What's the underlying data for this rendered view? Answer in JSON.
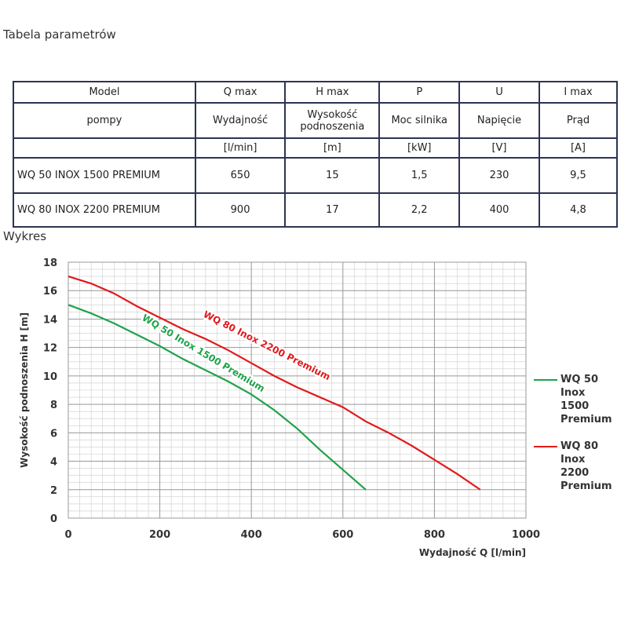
{
  "header": {
    "title": "Tabela parametrów"
  },
  "table": {
    "rows": [
      [
        "Model",
        "Q max",
        "H max",
        "P",
        "U",
        "I max"
      ],
      [
        "pompy",
        "Wydajność",
        "Wysokość podnoszenia",
        "Moc silnika",
        "Napięcie",
        "Prąd"
      ],
      [
        null,
        "[l/min]",
        "[m]",
        "[kW]",
        "[V]",
        "[A]"
      ],
      [
        "WQ 50 INOX 1500 PREMIUM",
        "650",
        "15",
        "1,5",
        "230",
        "9,5"
      ],
      [
        "WQ 80 INOX 2200 PREMIUM",
        "900",
        "17",
        "2,2",
        "400",
        "4,8"
      ]
    ]
  },
  "section_title": "Wykres",
  "chart_data": {
    "type": "line",
    "xlabel": "Wydajność Q [l/min]",
    "ylabel": "Wysokość podnoszenia H [m]",
    "xlim": [
      0,
      1000
    ],
    "ylim": [
      0,
      18
    ],
    "xticks": [
      0,
      200,
      400,
      600,
      800,
      1000
    ],
    "yticks": [
      0,
      2,
      4,
      6,
      8,
      10,
      12,
      14,
      16,
      18
    ],
    "grid": true,
    "series": [
      {
        "name": "WQ 50 Inox 1500 Premium",
        "color": "#1fa34a",
        "x": [
          0,
          50,
          100,
          150,
          200,
          250,
          300,
          350,
          400,
          450,
          500,
          550,
          600,
          650
        ],
        "values": [
          15,
          14.4,
          13.7,
          12.9,
          12.1,
          11.2,
          10.4,
          9.6,
          8.7,
          7.6,
          6.3,
          4.8,
          3.4,
          2
        ]
      },
      {
        "name": "WQ 80 Inox 2200 Premium",
        "color": "#e3191b",
        "x": [
          0,
          50,
          100,
          150,
          200,
          250,
          300,
          350,
          400,
          450,
          500,
          550,
          600,
          650,
          700,
          750,
          800,
          850,
          900
        ],
        "values": [
          17,
          16.5,
          15.8,
          14.9,
          14.1,
          13.3,
          12.6,
          11.8,
          10.9,
          10,
          9.2,
          8.5,
          7.8,
          6.8,
          6,
          5.1,
          4.1,
          3.1,
          2
        ]
      }
    ]
  }
}
